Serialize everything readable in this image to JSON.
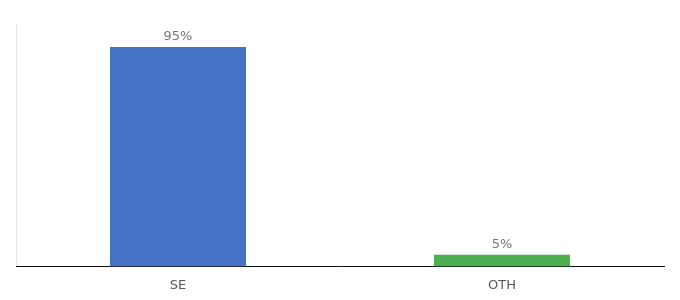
{
  "chart_data": {
    "type": "bar",
    "categories": [
      "SE",
      "OTH"
    ],
    "values": [
      95,
      5
    ],
    "value_labels": [
      "95%",
      "5%"
    ],
    "colors": [
      "#4472c4",
      "#4caf50"
    ],
    "data_labels": true,
    "ylim": [
      0,
      105
    ],
    "tick_labels": "x",
    "grid": false
  }
}
